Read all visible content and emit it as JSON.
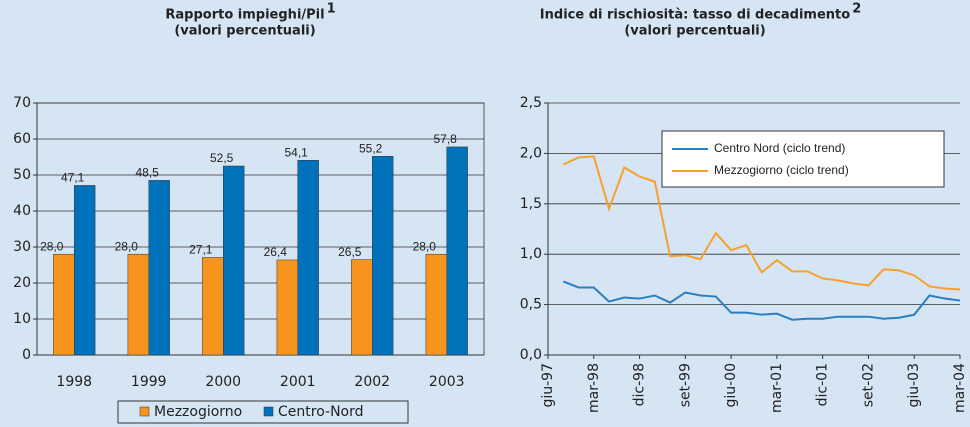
{
  "chart_data": [
    {
      "type": "bar",
      "title": "Rapporto impieghi/Pil",
      "title_note": "1",
      "subtitle": "(valori percentuali)",
      "categories": [
        "1998",
        "1999",
        "2000",
        "2001",
        "2002",
        "2003"
      ],
      "series": [
        {
          "name": "Mezzogiorno",
          "color": "#f7941d",
          "values": [
            28.0,
            28.0,
            27.1,
            26.4,
            26.5,
            28.0
          ],
          "value_labels": [
            "28,0",
            "28,0",
            "27,1",
            "26,4",
            "26,5",
            "28,0"
          ]
        },
        {
          "name": "Centro-Nord",
          "color": "#0072bc",
          "values": [
            47.1,
            48.5,
            52.5,
            54.1,
            55.2,
            57.8
          ],
          "value_labels": [
            "47,1",
            "48,5",
            "52,5",
            "54,1",
            "55,2",
            "57,8"
          ]
        }
      ],
      "ylim": [
        0,
        70
      ],
      "yticks": [
        0,
        10,
        20,
        30,
        40,
        50,
        60,
        70
      ],
      "grid": true,
      "legend": "bottom"
    },
    {
      "type": "line",
      "title": "Indice di rischiosità: tasso di decadimento",
      "title_note": "2",
      "subtitle": "(valori percentuali)",
      "categories": [
        "giu-97",
        null,
        null,
        "mar-98",
        null,
        null,
        "dic-98",
        null,
        null,
        "set-99",
        null,
        null,
        "giu-00",
        null,
        null,
        "mar-01",
        null,
        null,
        "dic-01",
        null,
        null,
        "set-02",
        null,
        null,
        "giu-03",
        null,
        null,
        "mar-04"
      ],
      "series": [
        {
          "name": "Centro Nord (ciclo trend)",
          "color": "#2a7fc1",
          "values": [
            null,
            0.73,
            0.67,
            0.67,
            0.53,
            0.57,
            0.56,
            0.59,
            0.52,
            0.62,
            0.59,
            0.58,
            0.42,
            0.42,
            0.4,
            0.41,
            0.35,
            0.36,
            0.36,
            0.38,
            0.38,
            0.38,
            0.36,
            0.37,
            0.4,
            0.59,
            0.56,
            0.54
          ]
        },
        {
          "name": "Mezzogiorno (ciclo trend)",
          "color": "#f7a030",
          "values": [
            null,
            1.89,
            1.96,
            1.97,
            1.45,
            1.86,
            1.77,
            1.72,
            0.98,
            0.99,
            0.95,
            1.21,
            1.04,
            1.09,
            0.82,
            0.94,
            0.83,
            0.83,
            0.76,
            0.74,
            0.71,
            0.69,
            0.85,
            0.84,
            0.79,
            0.68,
            0.66,
            0.65
          ]
        }
      ],
      "ylim": [
        0,
        2.5
      ],
      "yticks": [
        {
          "value": 0,
          "label": "0,0"
        },
        {
          "value": 0.5,
          "label": "0,5"
        },
        {
          "value": 1,
          "label": "1,0"
        },
        {
          "value": 1.5,
          "label": "1,5"
        },
        {
          "value": 2,
          "label": "2,0"
        },
        {
          "value": 2.5,
          "label": "2,5"
        }
      ],
      "grid": true,
      "legend": "upper right"
    }
  ]
}
